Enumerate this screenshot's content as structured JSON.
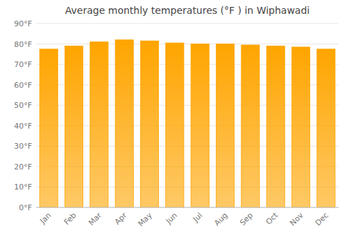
{
  "chart_data": {
    "type": "bar",
    "title": "Average monthly temperatures (°F ) in Wiphawadi",
    "categories": [
      "Jan",
      "Feb",
      "Mar",
      "Apr",
      "May",
      "Jun",
      "Jul",
      "Aug",
      "Sep",
      "Oct",
      "Nov",
      "Dec"
    ],
    "values": [
      77.5,
      79.0,
      81.0,
      82.0,
      81.5,
      80.5,
      80.0,
      80.0,
      79.5,
      79.0,
      78.5,
      77.5
    ],
    "color": "#FFA500",
    "ylim": [
      0,
      90
    ],
    "yticks": [
      {
        "value": 0,
        "label": "0°F"
      },
      {
        "value": 10,
        "label": "10°F"
      },
      {
        "value": 20,
        "label": "20°F"
      },
      {
        "value": 30,
        "label": "30°F"
      },
      {
        "value": 40,
        "label": "40°F"
      },
      {
        "value": 50,
        "label": "50°F"
      },
      {
        "value": 60,
        "label": "60°F"
      },
      {
        "value": 70,
        "label": "70°F"
      },
      {
        "value": 80,
        "label": "80°F"
      },
      {
        "value": 90,
        "label": "90°F"
      }
    ],
    "grid": true
  }
}
